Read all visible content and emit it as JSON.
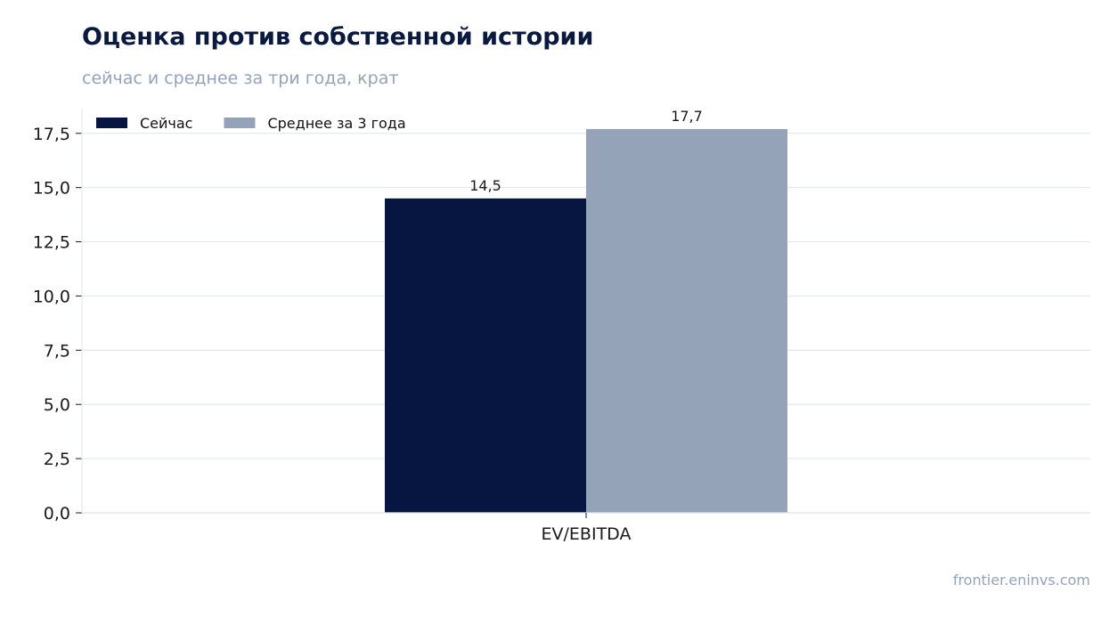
{
  "header": {
    "title": "Оценка против собственной истории",
    "subtitle": "сейчас и среднее за три года, крат"
  },
  "footer": {
    "source": "frontier.eninvs.com"
  },
  "chart_data": {
    "type": "bar",
    "categories": [
      "EV/EBITDA"
    ],
    "series": [
      {
        "name": "Сейчас",
        "values": [
          14.5
        ],
        "labels": [
          "14,5"
        ],
        "color": "#061640"
      },
      {
        "name": "Среднее за 3 года",
        "values": [
          17.7
        ],
        "labels": [
          "17,7"
        ],
        "color": "#94a3b8"
      }
    ],
    "ylim": [
      0,
      18.6
    ],
    "yticks": [
      0,
      2.5,
      5,
      7.5,
      10,
      12.5,
      15,
      17.5
    ],
    "ytick_labels": [
      "0,0",
      "2,5",
      "5,0",
      "7,5",
      "10,0",
      "12,5",
      "15,0",
      "17,5"
    ],
    "grid": true,
    "legend_position": "top-left"
  }
}
